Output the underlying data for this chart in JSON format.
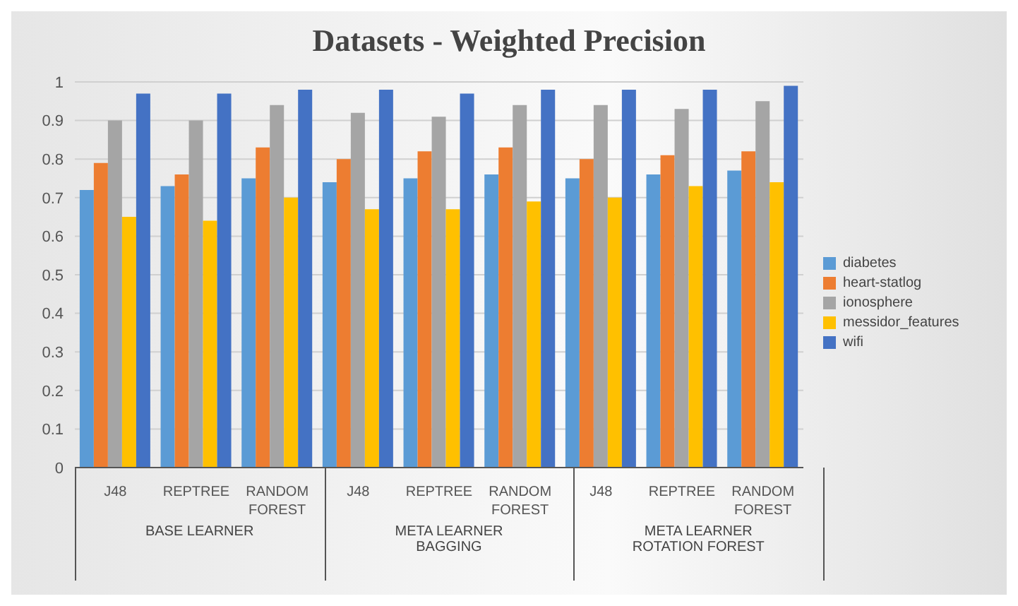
{
  "chart_data": {
    "type": "bar",
    "title": "Datasets - Weighted Precision",
    "categories": [
      "J48",
      "REPTREE",
      "RANDOM FOREST",
      "J48",
      "REPTREE",
      "RANDOM FOREST",
      "J48",
      "REPTREE",
      "RANDOM FOREST"
    ],
    "annotations": [
      "BASE LEARNER",
      "META LEARNER BAGGING",
      "META LEARNER ROTATION FOREST"
    ],
    "series": [
      {
        "name": "diabetes",
        "color": "#5b9bd5",
        "values": [
          0.72,
          0.73,
          0.75,
          0.74,
          0.75,
          0.76,
          0.75,
          0.76,
          0.77
        ]
      },
      {
        "name": "heart-statlog",
        "color": "#ed7d31",
        "values": [
          0.79,
          0.76,
          0.83,
          0.8,
          0.82,
          0.83,
          0.8,
          0.81,
          0.82
        ]
      },
      {
        "name": "ionosphere",
        "color": "#a5a5a5",
        "values": [
          0.9,
          0.9,
          0.94,
          0.92,
          0.91,
          0.94,
          0.94,
          0.93,
          0.95
        ]
      },
      {
        "name": "messidor_features",
        "color": "#ffc000",
        "values": [
          0.65,
          0.64,
          0.7,
          0.67,
          0.67,
          0.69,
          0.7,
          0.73,
          0.74
        ]
      },
      {
        "name": "wifi",
        "color": "#4472c4",
        "values": [
          0.97,
          0.97,
          0.98,
          0.98,
          0.97,
          0.98,
          0.98,
          0.98,
          0.99
        ]
      }
    ],
    "ylim": [
      0,
      1
    ],
    "yticks": [
      0,
      0.1,
      0.2,
      0.3,
      0.4,
      0.5,
      0.6,
      0.7,
      0.8,
      0.9,
      1
    ],
    "grid": "y",
    "legend": "right"
  }
}
